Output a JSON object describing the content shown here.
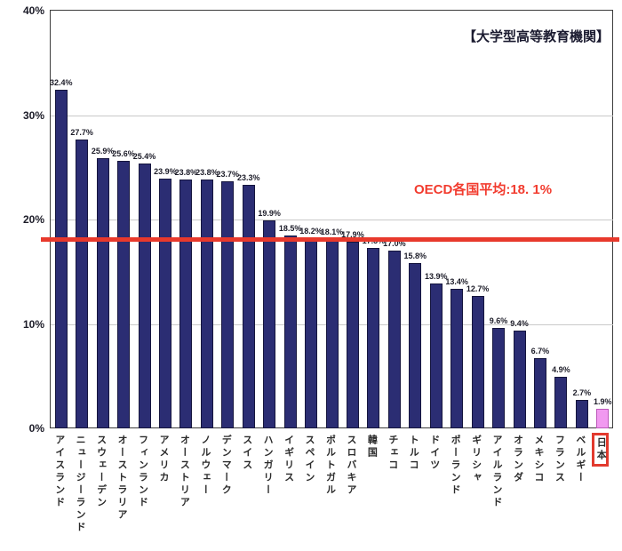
{
  "chart_data": {
    "type": "bar",
    "title": "【大学型高等教育機関】",
    "categories": [
      "アイスランド",
      "ニュージーランド",
      "スウェーデン",
      "オーストラリア",
      "フィンランド",
      "アメリカ",
      "オーストリア",
      "ノルウェー",
      "デンマーク",
      "スイス",
      "ハンガリー",
      "イギリス",
      "スペイン",
      "ポルトガル",
      "スロバキア",
      "韓国",
      "チェコ",
      "トルコ",
      "ドイツ",
      "ポーランド",
      "ギリシャ",
      "アイルランド",
      "オランダ",
      "メキシコ",
      "フランス",
      "ベルギー",
      "日本"
    ],
    "values": [
      32.4,
      27.7,
      25.9,
      25.6,
      25.4,
      23.9,
      23.8,
      23.8,
      23.7,
      23.3,
      19.9,
      18.5,
      18.2,
      18.1,
      17.9,
      17.3,
      17.0,
      15.8,
      13.9,
      13.4,
      12.7,
      9.6,
      9.4,
      6.7,
      4.9,
      2.7,
      1.9
    ],
    "value_label_suffix": "%",
    "xlabel": "",
    "ylabel": "",
    "ylim": [
      0,
      40
    ],
    "yticks": [
      {
        "value": 0,
        "label": "0%"
      },
      {
        "value": 10,
        "label": "10%"
      },
      {
        "value": 20,
        "label": "20%"
      },
      {
        "value": 30,
        "label": "30%"
      },
      {
        "value": 40,
        "label": "40%"
      }
    ],
    "grid": "horizontal",
    "legend": "none",
    "annotation": {
      "text": "OECD各国平均:18. 1%",
      "value": 18.1,
      "line_color": "#e8392c",
      "text_color": "#f23b2e"
    },
    "highlight_index": 26,
    "highlight_category": "日本",
    "colors": {
      "bar": "#2b2d73",
      "highlight_bar": "#f199f0",
      "average_line": "#e8392c",
      "highlight_box": "#e23a2e",
      "grid": "#c9c9c9",
      "frame": "#3c3c3c"
    }
  }
}
